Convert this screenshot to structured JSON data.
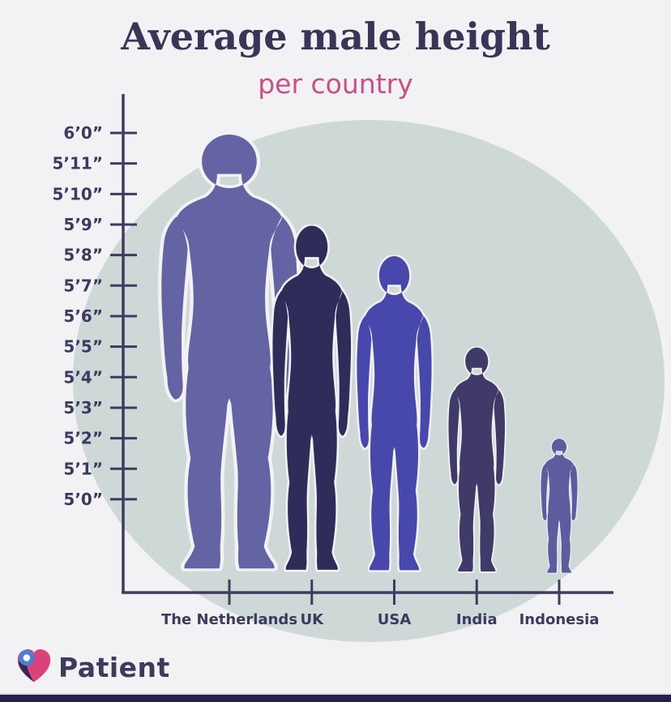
{
  "header": {
    "title": "Average male height",
    "subtitle": "per country",
    "title_color": "#3a3457",
    "subtitle_color": "#c94f86"
  },
  "chart_data": {
    "type": "bar",
    "variant": "pictogram-human-silhouettes",
    "title": "Average male height",
    "subtitle": "per country",
    "categories": [
      "The Netherlands",
      "UK",
      "USA",
      "India",
      "Indonesia"
    ],
    "values_inches": [
      72,
      69,
      68,
      65,
      62
    ],
    "values_display": [
      "6’0”",
      "5’9”",
      "5’8”",
      "5’5”",
      "5’2”"
    ],
    "y_ticks": [
      "6’0”",
      "5’11”",
      "5’10”",
      "5’9”",
      "5’8”",
      "5’7”",
      "5’6”",
      "5’5”",
      "5’4”",
      "5’3”",
      "5’2”",
      "5’1”",
      "5’0”"
    ],
    "ylim_inches": [
      60,
      72
    ],
    "grid": false,
    "legend": false,
    "axis_color": "#3e3c5e",
    "label_color": "#3c3a5e",
    "circle_color": "#cdd8d7",
    "halo_color": "#f2f1f4",
    "silhouette_colors": [
      "#6463a4",
      "#2f2c5a",
      "#4847ab",
      "#3f3a68",
      "#5d5c9f"
    ]
  },
  "footer": {
    "brand": "Patient",
    "brand_color": "#3d3a5c",
    "heart_blue": "#4a7fd6",
    "heart_pink": "#d8437c",
    "heart_navy": "#2e2b55",
    "heart_dot": "#ffffff",
    "bottom_bar_color": "#23224a"
  }
}
